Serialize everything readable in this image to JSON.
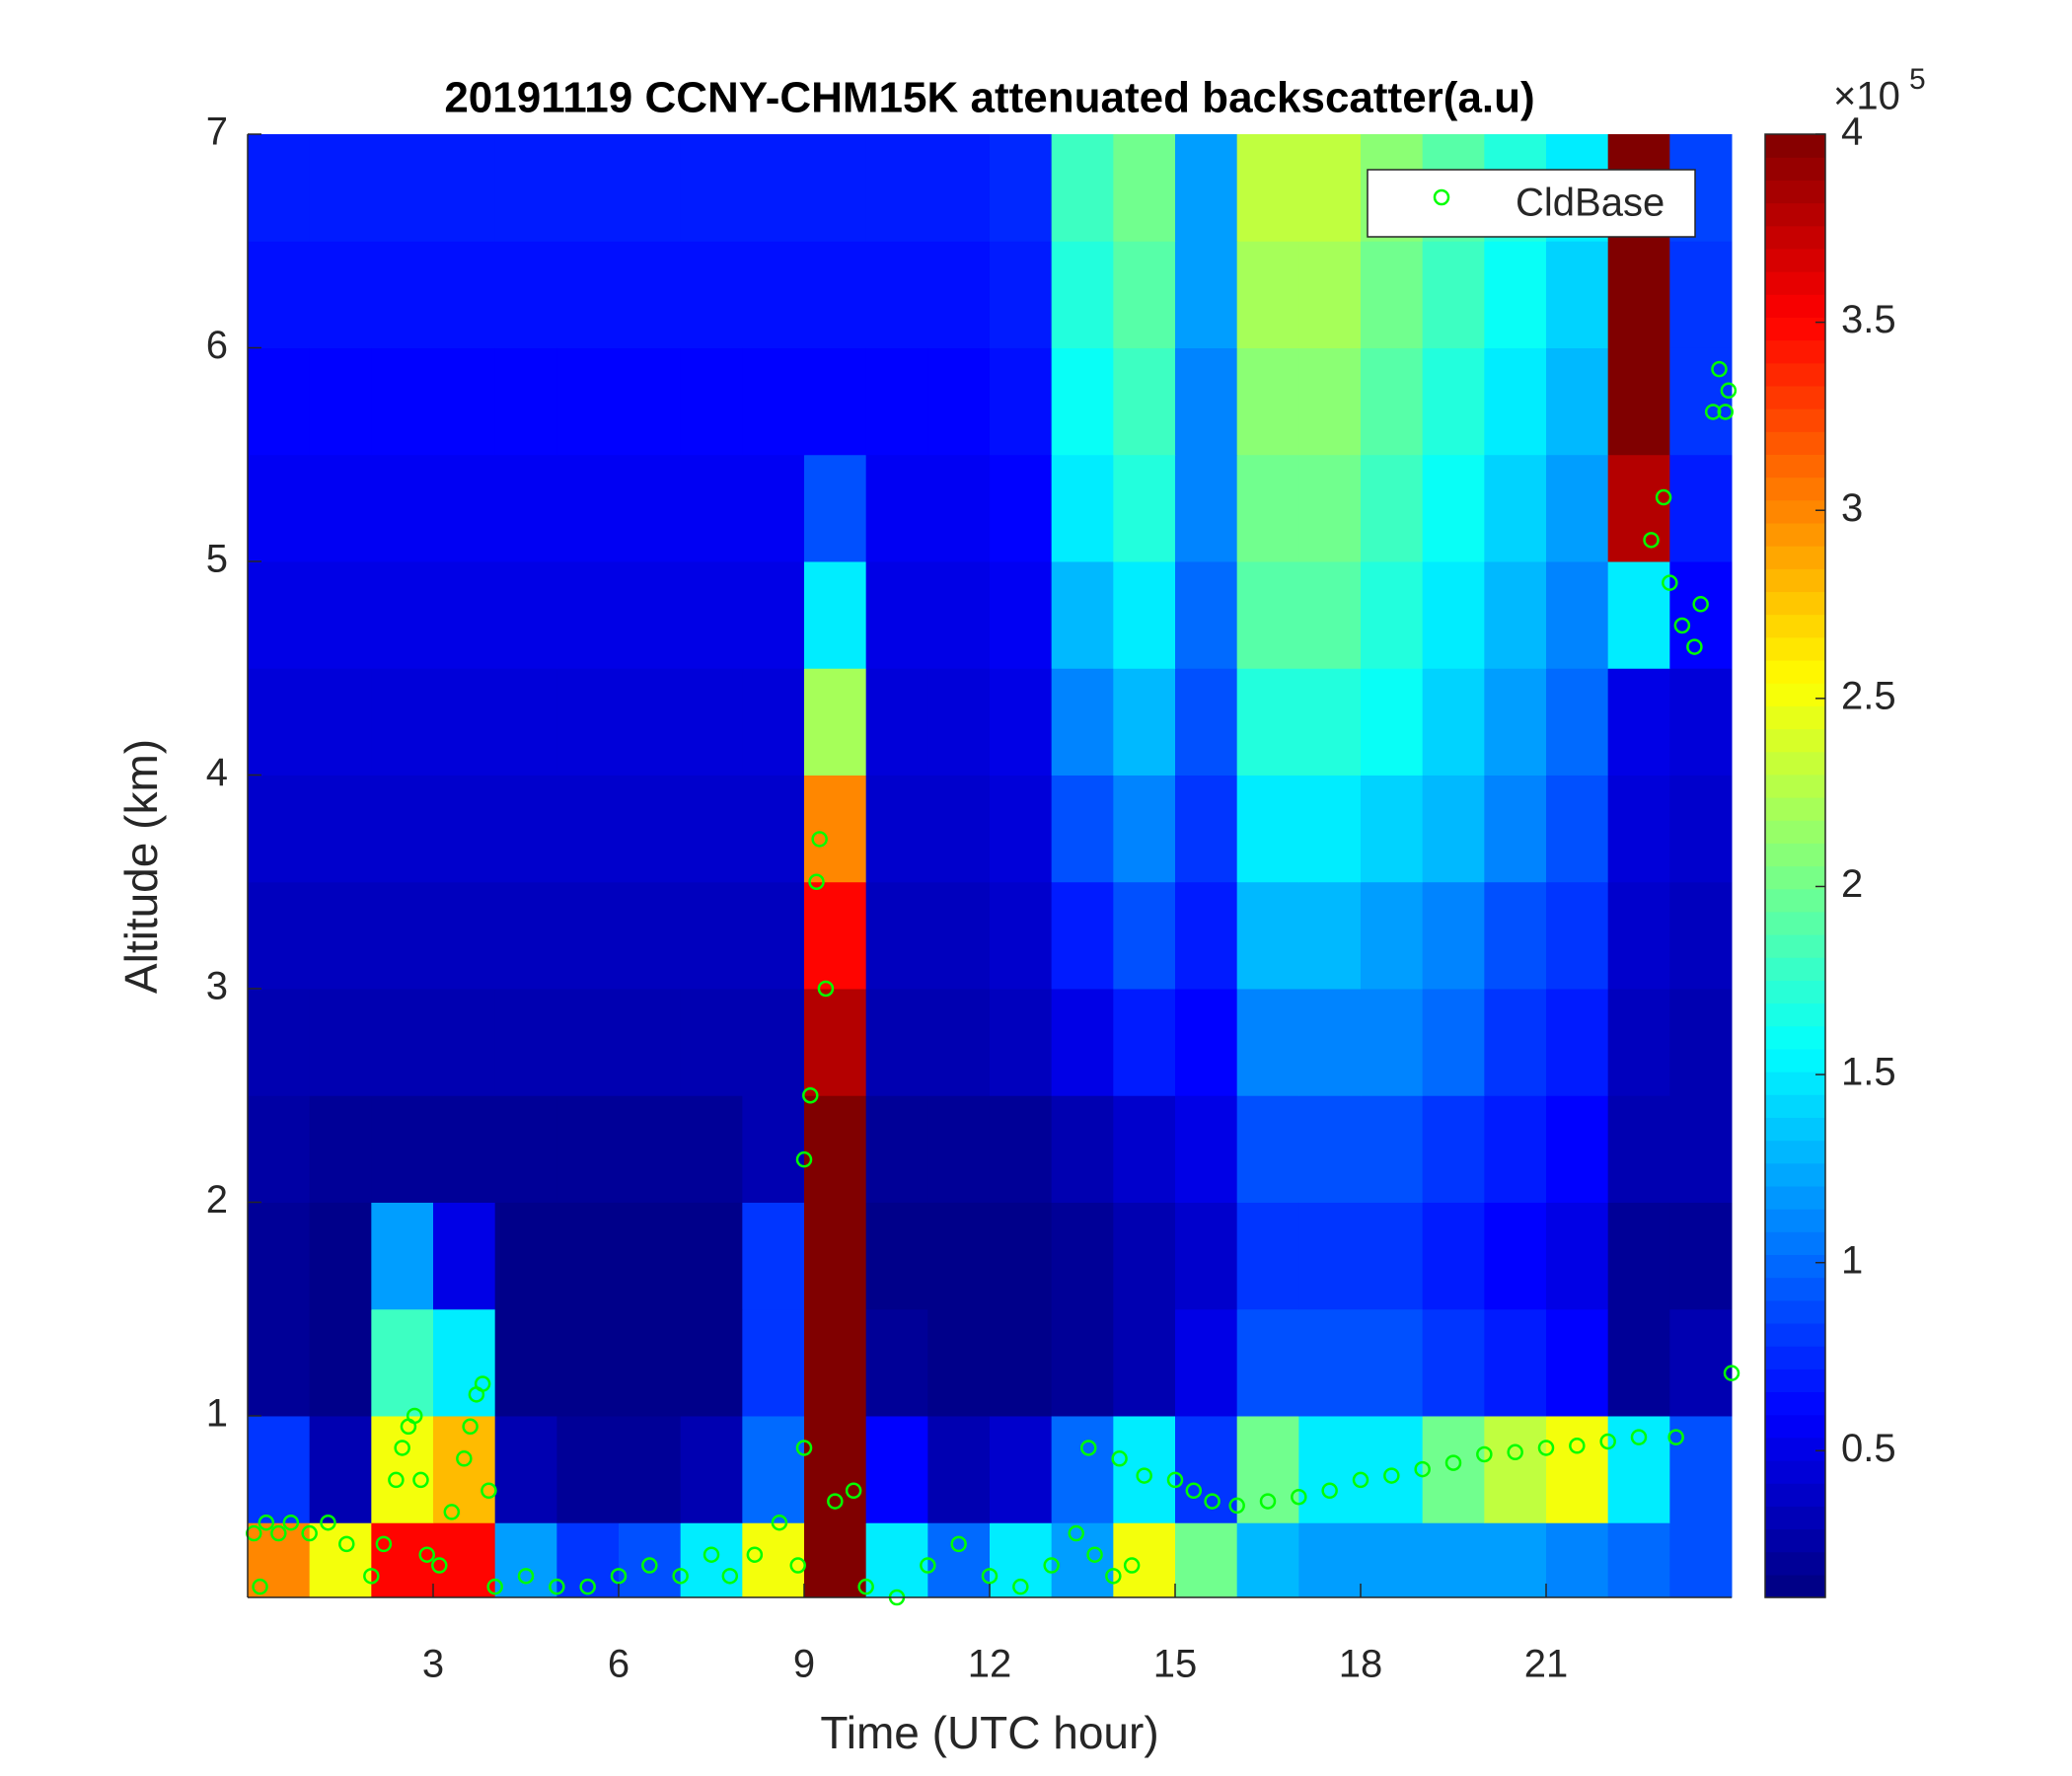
{
  "chart_data": {
    "type": "heatmap",
    "title": "20191119 CCNY-CHM15K attenuated backscatter(a.u)",
    "xlabel": "Time (UTC hour)",
    "ylabel": "Altitude (km)",
    "xlim": [
      0,
      24
    ],
    "ylim": [
      0.15,
      7
    ],
    "xticks": [
      3,
      6,
      9,
      12,
      15,
      18,
      21
    ],
    "yticks": [
      1,
      2,
      3,
      4,
      5,
      6,
      7
    ],
    "clim": [
      0.11,
      4
    ],
    "cticks": [
      0.5,
      1,
      1.5,
      2,
      2.5,
      3,
      3.5,
      4
    ],
    "c_multiplier": "×10",
    "c_exponent": 5,
    "colormap": "jet",
    "legend_position": "upper right",
    "x_edges": [
      0,
      1,
      2,
      3,
      4,
      5,
      6,
      7,
      8,
      9,
      10,
      11,
      12,
      13,
      14,
      15,
      16,
      17,
      18,
      19,
      20,
      21,
      22,
      23,
      24
    ],
    "y_edges": [
      0.15,
      0.5,
      1,
      1.5,
      2,
      2.5,
      3,
      3.5,
      4,
      4.5,
      5,
      5.5,
      6,
      6.5,
      7
    ],
    "z": [
      [
        3,
        2.5,
        3.5,
        3.5,
        1.2,
        0.8,
        0.9,
        1.5,
        2.5,
        4,
        1.5,
        1,
        1.5,
        1.2,
        2.5,
        2,
        1.3,
        1.2,
        1.2,
        1.2,
        1.2,
        1.1,
        1,
        0.9
      ],
      [
        0.8,
        0.3,
        2.5,
        2.8,
        0.3,
        0.2,
        0.2,
        0.3,
        1,
        4,
        0.6,
        0.3,
        0.4,
        1,
        1.5,
        0.8,
        2,
        1.5,
        1.5,
        2,
        2.3,
        2.5,
        1.5,
        0.9
      ],
      [
        0.2,
        0.15,
        1.8,
        1.5,
        0.15,
        0.15,
        0.15,
        0.15,
        0.8,
        4,
        0.2,
        0.15,
        0.15,
        0.2,
        0.3,
        0.5,
        0.9,
        0.9,
        0.9,
        0.8,
        0.7,
        0.6,
        0.2,
        0.3
      ],
      [
        0.2,
        0.15,
        1.2,
        0.5,
        0.15,
        0.15,
        0.15,
        0.15,
        0.8,
        4,
        0.15,
        0.15,
        0.15,
        0.2,
        0.3,
        0.4,
        0.8,
        0.8,
        0.8,
        0.7,
        0.6,
        0.5,
        0.2,
        0.2
      ],
      [
        0.25,
        0.2,
        0.2,
        0.2,
        0.2,
        0.2,
        0.2,
        0.2,
        0.3,
        4,
        0.2,
        0.2,
        0.2,
        0.3,
        0.4,
        0.5,
        0.9,
        0.9,
        0.9,
        0.8,
        0.7,
        0.6,
        0.3,
        0.3
      ],
      [
        0.3,
        0.3,
        0.3,
        0.3,
        0.3,
        0.3,
        0.3,
        0.3,
        0.3,
        3.8,
        0.3,
        0.3,
        0.35,
        0.5,
        0.7,
        0.6,
        1.1,
        1.1,
        1.1,
        1,
        0.8,
        0.7,
        0.35,
        0.3
      ],
      [
        0.35,
        0.35,
        0.35,
        0.35,
        0.35,
        0.35,
        0.35,
        0.35,
        0.35,
        3.5,
        0.35,
        0.35,
        0.4,
        0.7,
        0.9,
        0.7,
        1.3,
        1.3,
        1.2,
        1.1,
        0.9,
        0.8,
        0.4,
        0.35
      ],
      [
        0.4,
        0.4,
        0.4,
        0.4,
        0.4,
        0.4,
        0.4,
        0.4,
        0.4,
        3,
        0.4,
        0.4,
        0.45,
        0.9,
        1.1,
        0.8,
        1.5,
        1.5,
        1.4,
        1.3,
        1.1,
        0.9,
        0.45,
        0.4
      ],
      [
        0.45,
        0.45,
        0.45,
        0.45,
        0.45,
        0.45,
        0.45,
        0.45,
        0.45,
        2.2,
        0.45,
        0.45,
        0.5,
        1.1,
        1.3,
        0.9,
        1.7,
        1.7,
        1.6,
        1.4,
        1.2,
        1,
        0.5,
        0.45
      ],
      [
        0.5,
        0.5,
        0.5,
        0.5,
        0.5,
        0.5,
        0.5,
        0.5,
        0.5,
        1.5,
        0.5,
        0.5,
        0.55,
        1.3,
        1.5,
        1,
        1.9,
        1.9,
        1.7,
        1.5,
        1.3,
        1.1,
        1.5,
        0.6
      ],
      [
        0.55,
        0.55,
        0.55,
        0.55,
        0.55,
        0.55,
        0.55,
        0.55,
        0.55,
        0.9,
        0.55,
        0.55,
        0.6,
        1.5,
        1.7,
        1.1,
        2,
        2,
        1.8,
        1.6,
        1.4,
        1.2,
        3.8,
        0.7
      ],
      [
        0.6,
        0.6,
        0.6,
        0.6,
        0.6,
        0.6,
        0.6,
        0.6,
        0.6,
        0.6,
        0.6,
        0.6,
        0.65,
        1.6,
        1.8,
        1.1,
        2.1,
        2.1,
        1.9,
        1.7,
        1.5,
        1.3,
        4,
        0.8
      ],
      [
        0.65,
        0.65,
        0.65,
        0.65,
        0.65,
        0.65,
        0.65,
        0.65,
        0.65,
        0.65,
        0.65,
        0.65,
        0.7,
        1.7,
        1.9,
        1.2,
        2.2,
        2.2,
        2,
        1.8,
        1.6,
        1.4,
        4,
        0.8
      ],
      [
        0.7,
        0.7,
        0.7,
        0.7,
        0.7,
        0.7,
        0.7,
        0.7,
        0.7,
        0.7,
        0.7,
        0.7,
        0.75,
        1.8,
        2,
        1.2,
        2.3,
        2.3,
        2.1,
        1.9,
        1.7,
        1.5,
        4,
        0.85
      ]
    ],
    "series": [
      {
        "name": "CldBase",
        "type": "scatter",
        "color": "#00ff00",
        "x": [
          0.1,
          0.2,
          0.3,
          0.5,
          0.7,
          1,
          1.3,
          1.6,
          2,
          2.2,
          2.4,
          2.5,
          2.6,
          2.7,
          2.8,
          2.9,
          3.1,
          3.3,
          3.5,
          3.6,
          3.7,
          3.8,
          3.9,
          4,
          4.5,
          5,
          5.5,
          6,
          6.5,
          7,
          7.5,
          7.8,
          8.2,
          8.6,
          8.9,
          9,
          9,
          9.1,
          9.2,
          9.25,
          9.35,
          9.5,
          9.8,
          10,
          10.5,
          11,
          11.5,
          12,
          12.5,
          13,
          13.4,
          13.7,
          14,
          14.3,
          13.6,
          14.1,
          14.5,
          15,
          15.3,
          15.6,
          16,
          16.5,
          17,
          17.5,
          18,
          18.5,
          19,
          19.5,
          20,
          20.5,
          21,
          21.5,
          22,
          22.5,
          23.1,
          24,
          22.7,
          22.9,
          23,
          23.2,
          23.4,
          23.5,
          23.7,
          23.8,
          23.9,
          23.95
        ],
        "y": [
          0.45,
          0.2,
          0.5,
          0.45,
          0.5,
          0.45,
          0.5,
          0.4,
          0.25,
          0.4,
          0.7,
          0.85,
          0.95,
          1,
          0.7,
          0.35,
          0.3,
          0.55,
          0.8,
          0.95,
          1.1,
          1.15,
          0.65,
          0.2,
          0.25,
          0.2,
          0.2,
          0.25,
          0.3,
          0.25,
          0.35,
          0.25,
          0.35,
          0.5,
          0.3,
          0.85,
          2.2,
          2.5,
          3.5,
          3.7,
          3,
          0.6,
          0.65,
          0.2,
          0.15,
          0.3,
          0.4,
          0.25,
          0.2,
          0.3,
          0.45,
          0.35,
          0.25,
          0.3,
          0.85,
          0.8,
          0.72,
          0.7,
          0.65,
          0.6,
          0.58,
          0.6,
          0.62,
          0.65,
          0.7,
          0.72,
          0.75,
          0.78,
          0.82,
          0.83,
          0.85,
          0.86,
          0.88,
          0.9,
          0.9,
          1.2,
          5.1,
          5.3,
          4.9,
          4.7,
          4.6,
          4.8,
          5.7,
          5.9,
          5.7,
          5.8
        ]
      }
    ]
  }
}
